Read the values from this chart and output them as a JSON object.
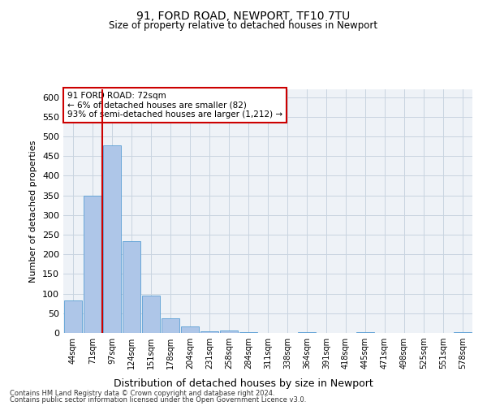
{
  "title1": "91, FORD ROAD, NEWPORT, TF10 7TU",
  "title2": "Size of property relative to detached houses in Newport",
  "xlabel": "Distribution of detached houses by size in Newport",
  "ylabel": "Number of detached properties",
  "categories": [
    "44sqm",
    "71sqm",
    "97sqm",
    "124sqm",
    "151sqm",
    "178sqm",
    "204sqm",
    "231sqm",
    "258sqm",
    "284sqm",
    "311sqm",
    "338sqm",
    "364sqm",
    "391sqm",
    "418sqm",
    "445sqm",
    "471sqm",
    "498sqm",
    "525sqm",
    "551sqm",
    "578sqm"
  ],
  "values": [
    82,
    350,
    478,
    233,
    96,
    37,
    16,
    5,
    7,
    2,
    0,
    0,
    2,
    0,
    0,
    2,
    0,
    0,
    0,
    0,
    2
  ],
  "bar_color": "#aec6e8",
  "bar_edge_color": "#5a9fd4",
  "grid_color": "#c8d4e0",
  "bg_color": "#eef2f7",
  "red_line_x": 1.5,
  "annotation_line1": "91 FORD ROAD: 72sqm",
  "annotation_line2": "← 6% of detached houses are smaller (82)",
  "annotation_line3": "93% of semi-detached houses are larger (1,212) →",
  "annotation_box_color": "#ffffff",
  "annotation_border_color": "#cc0000",
  "ylim": [
    0,
    620
  ],
  "yticks": [
    0,
    50,
    100,
    150,
    200,
    250,
    300,
    350,
    400,
    450,
    500,
    550,
    600
  ],
  "footer1": "Contains HM Land Registry data © Crown copyright and database right 2024.",
  "footer2": "Contains public sector information licensed under the Open Government Licence v3.0."
}
